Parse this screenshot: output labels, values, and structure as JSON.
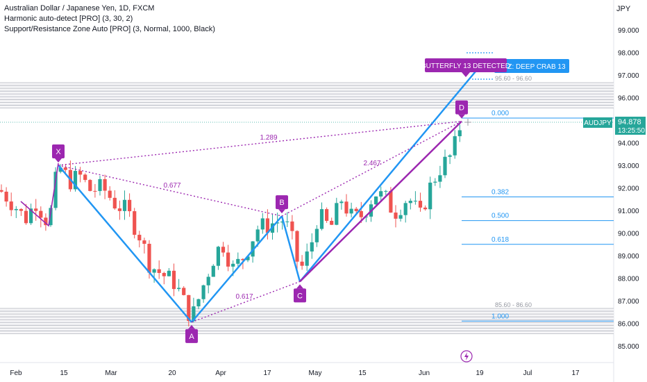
{
  "legend": {
    "title": "Australian Dollar / Japanese Yen, 1D, FXCM",
    "indicator1": "Harmonic auto-detect [PRO] (3, 30, 2)",
    "indicator2": "Support/Resistance Zone Auto [PRO] (3, Normal, 1000, Black)"
  },
  "price_axis": {
    "currency": "JPY",
    "ticks": [
      "99.000",
      "98.000",
      "97.000",
      "96.000",
      "95.000",
      "94.000",
      "93.000",
      "92.000",
      "91.000",
      "90.000",
      "89.000",
      "88.000",
      "87.000",
      "86.000",
      "85.000"
    ],
    "symbol_badge": "AUDJPY",
    "last_price": "94.878",
    "countdown": "13:25:50"
  },
  "time_axis": {
    "ticks": [
      "Feb",
      "15",
      "Mar",
      "20",
      "Apr",
      "17",
      "May",
      "15",
      "Jun",
      "19",
      "Jul",
      "17"
    ]
  },
  "chart_data": {
    "type": "candlestick",
    "symbol": "AUDJPY",
    "timeframe": "1D",
    "ylim": [
      84.6,
      99.6
    ],
    "harmonic_points": [
      {
        "label": "X",
        "price": 93.0
      },
      {
        "label": "A",
        "price": 86.05
      },
      {
        "label": "B",
        "price": 90.75
      },
      {
        "label": "C",
        "price": 87.85
      },
      {
        "label": "D",
        "price": 94.95
      }
    ],
    "ratios": [
      "0.677",
      "0.617",
      "2.467",
      "1.289"
    ],
    "fib_levels": [
      {
        "label": "0.000",
        "price": 94.95
      },
      {
        "label": "0.382",
        "price": 91.6
      },
      {
        "label": "0.500",
        "price": 90.55
      },
      {
        "label": "0.618",
        "price": 89.5
      },
      {
        "label": "1.000",
        "price": 86.1
      }
    ],
    "zones": [
      {
        "label": "95.60 - 96.60",
        "low": 95.6,
        "high": 96.6
      },
      {
        "label": "85.60 - 86.60",
        "low": 85.6,
        "high": 86.6
      }
    ],
    "pattern_labels": {
      "detected": "BUTTERFLY 13 DETECTED",
      "prz": "PRZ: DEEP CRAB 13"
    },
    "last_price": 94.878,
    "colors": {
      "up": "#26a69a",
      "down": "#ef5350",
      "pattern": "#9c27b0",
      "trend": "#2196f3",
      "fib": "#2196f3",
      "zone": "#787b86"
    }
  }
}
